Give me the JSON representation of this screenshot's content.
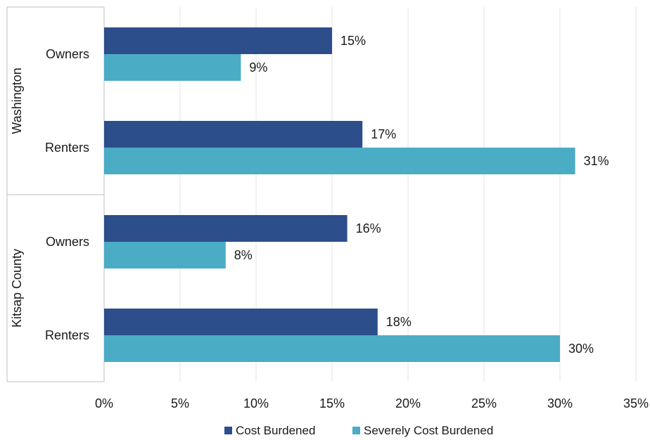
{
  "chart_data": {
    "type": "bar",
    "orientation": "horizontal",
    "groups": [
      {
        "label": "Washington",
        "categories": [
          {
            "label": "Owners",
            "values": [
              15,
              9
            ],
            "data_labels": [
              "15%",
              "9%"
            ]
          },
          {
            "label": "Renters",
            "values": [
              17,
              31
            ],
            "data_labels": [
              "17%",
              "31%"
            ]
          }
        ]
      },
      {
        "label": "Kitsap County",
        "categories": [
          {
            "label": "Owners",
            "values": [
              16,
              8
            ],
            "data_labels": [
              "16%",
              "8%"
            ]
          },
          {
            "label": "Renters",
            "values": [
              18,
              30
            ],
            "data_labels": [
              "18%",
              "30%"
            ]
          }
        ]
      }
    ],
    "series": [
      {
        "name": "Cost Burdened",
        "color": "#2c4e8a"
      },
      {
        "name": "Severely Cost Burdened",
        "color": "#4bacc6"
      }
    ],
    "xlim": [
      0,
      35
    ],
    "xticks": [
      0,
      5,
      10,
      15,
      20,
      25,
      30,
      35
    ],
    "xtick_labels": [
      "0%",
      "5%",
      "10%",
      "15%",
      "20%",
      "25%",
      "30%",
      "35%"
    ],
    "grid": "vertical",
    "legend_position": "bottom"
  }
}
